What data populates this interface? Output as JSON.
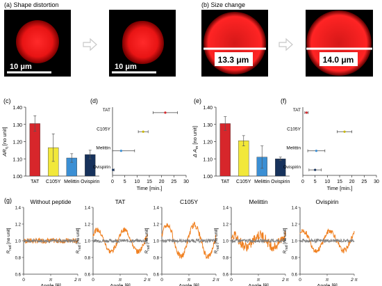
{
  "panels": {
    "a": {
      "title": "(a) Shape distortion",
      "scale_left": "10 μm",
      "scale_right": "10 μm"
    },
    "b": {
      "title": "(b) Size change",
      "size_left": "13.3 μm",
      "size_right": "14.0 μm"
    }
  },
  "colors": {
    "TAT": "#d7262b",
    "C105Y": "#f2e83a",
    "Melittin": "#3b8fd4",
    "Ovispirin": "#17325c",
    "orange": "#f07f1e",
    "gray": "#808080",
    "arrow": "#cfcfcf",
    "fluor": "#ff1f1f"
  },
  "chart_data": [
    {
      "id": "c",
      "label": "(c)",
      "type": "bar",
      "categories": [
        "TAT",
        "C105Y",
        "Melittin",
        "Ovispirin"
      ],
      "values": [
        1.305,
        1.165,
        1.105,
        1.125
      ],
      "errors": [
        0.045,
        0.08,
        0.025,
        0.025
      ],
      "ylim": [
        1.0,
        1.4
      ],
      "yticks": [
        "1.00",
        "1.10",
        "1.20",
        "1.30",
        "1.40"
      ],
      "ylabel_main": "AR",
      "ylabel_sub": "ɳ",
      "ylabel_unit": " [no unit]"
    },
    {
      "id": "d",
      "label": "(d)",
      "type": "scatter",
      "categories": [
        "TAT",
        "C105Y",
        "Melittin",
        "Ovispirin"
      ],
      "values": [
        21.5,
        12.5,
        3.5,
        0.2
      ],
      "errors": [
        5.0,
        2.0,
        5.5,
        0.5
      ],
      "point_colors": [
        "#d7262b",
        "#c9b800",
        "#3b8fd4",
        "#17325c"
      ],
      "xlim": [
        0,
        30
      ],
      "xticks": [
        "0",
        "5",
        "10",
        "15",
        "20",
        "25",
        "30"
      ],
      "xlabel": "Time [min.]"
    },
    {
      "id": "e",
      "label": "(e)",
      "type": "bar",
      "categories": [
        "TAT",
        "C105Y",
        "Melittin",
        "Ovispirin"
      ],
      "values": [
        1.305,
        1.205,
        1.11,
        1.1
      ],
      "errors": [
        0.04,
        0.03,
        0.065,
        0.01
      ],
      "ylim": [
        1.0,
        1.4
      ],
      "yticks": [
        "1.00",
        "1.10",
        "1.20",
        "1.30",
        "1.40"
      ],
      "ylabel_main": "Δ A",
      "ylabel_sub": "m",
      "ylabel_unit": " [no unit]"
    },
    {
      "id": "f",
      "label": "(f)",
      "type": "scatter",
      "categories": [
        "TAT",
        "C105Y",
        "Melittin",
        "Ovispirin"
      ],
      "values": [
        1.5,
        17.0,
        5.5,
        5.0
      ],
      "errors": [
        0.7,
        3.0,
        3.5,
        2.5
      ],
      "point_colors": [
        "#d7262b",
        "#c9b800",
        "#3b8fd4",
        "#17325c"
      ],
      "xlim": [
        0,
        30
      ],
      "xticks": [
        "0",
        "5",
        "10",
        "15",
        "20",
        "25",
        "30"
      ],
      "xlabel": "Time [min.]"
    },
    {
      "id": "g",
      "label": "(g)",
      "type": "line",
      "ylim": [
        0.6,
        1.4
      ],
      "yticks": [
        "0.6",
        "0.8",
        "1.0",
        "1.2",
        "1.4"
      ],
      "xticks": [
        "0",
        "π",
        "2 π"
      ],
      "xlabel": "Angle [θ]",
      "ylabel_main": "R",
      "ylabel_sub": "rad",
      "ylabel_unit": " [no unit]",
      "panels": [
        {
          "title": "Without peptide",
          "orange_amp": 0.0,
          "orange_phase": 0.0,
          "orange_noise": 0.03,
          "gray_noise": 0.02
        },
        {
          "title": "TAT",
          "orange_amp": 0.13,
          "orange_phase": 0.6,
          "orange_noise": 0.03,
          "gray_noise": 0.02
        },
        {
          "title": "C105Y",
          "orange_amp": 0.19,
          "orange_phase": 0.3,
          "orange_noise": 0.035,
          "gray_noise": 0.02
        },
        {
          "title": "Melittin",
          "orange_amp": 0.07,
          "orange_phase": 1.2,
          "orange_noise": 0.06,
          "gray_noise": 0.02
        },
        {
          "title": "Ovispirin",
          "orange_amp": 0.12,
          "orange_phase": 0.9,
          "orange_noise": 0.03,
          "gray_noise": 0.02
        }
      ]
    }
  ]
}
